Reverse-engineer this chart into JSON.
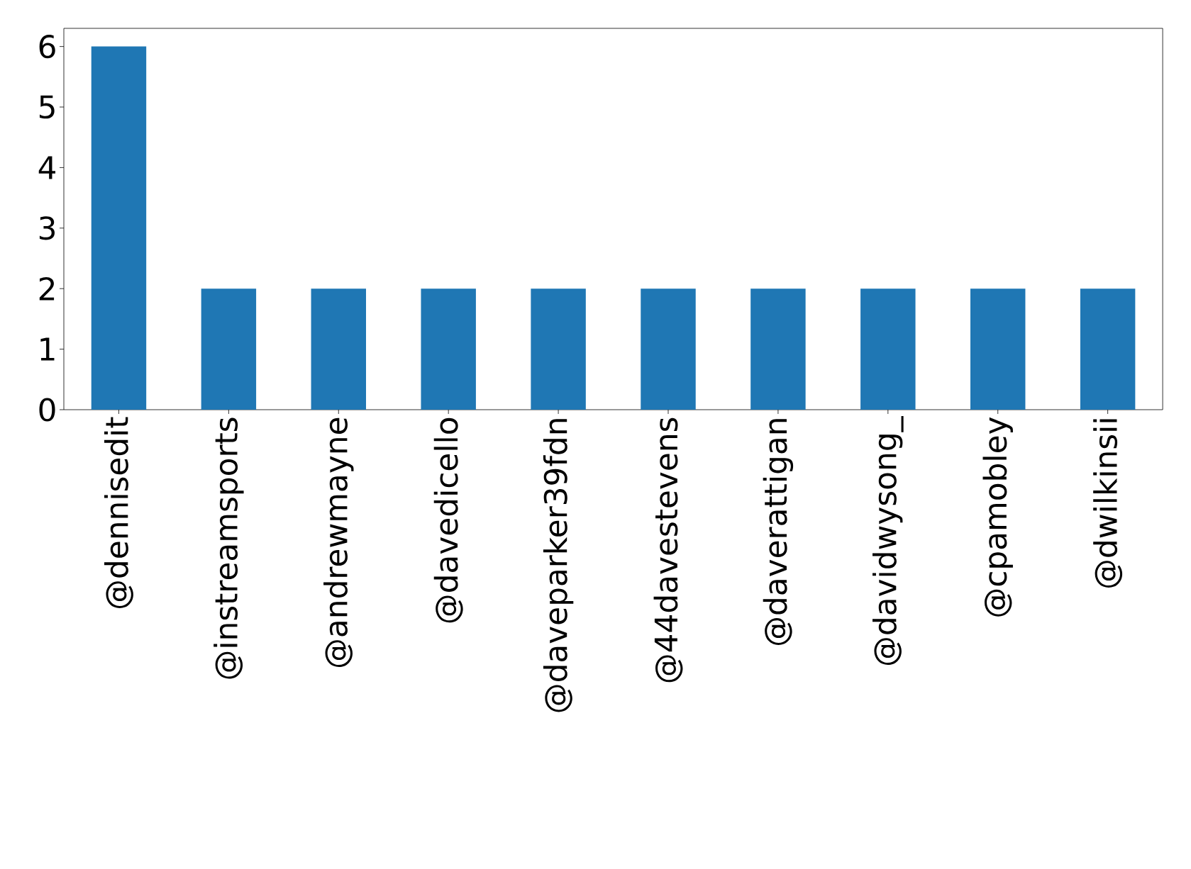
{
  "chart_data": {
    "type": "bar",
    "categories": [
      "@dennisedit",
      "@instreamsports",
      "@andrewmayne",
      "@davedicello",
      "@daveparker39fdn",
      "@44davestevens",
      "@daverattigan",
      "@davidwysong_",
      "@cpamobley",
      "@dwilkinsii"
    ],
    "values": [
      6,
      2,
      2,
      2,
      2,
      2,
      2,
      2,
      2,
      2
    ],
    "color": "#1f77b4",
    "ylim": [
      0,
      6.3
    ],
    "yticks": [
      0,
      1,
      2,
      3,
      4,
      5,
      6
    ],
    "grid": false
  }
}
